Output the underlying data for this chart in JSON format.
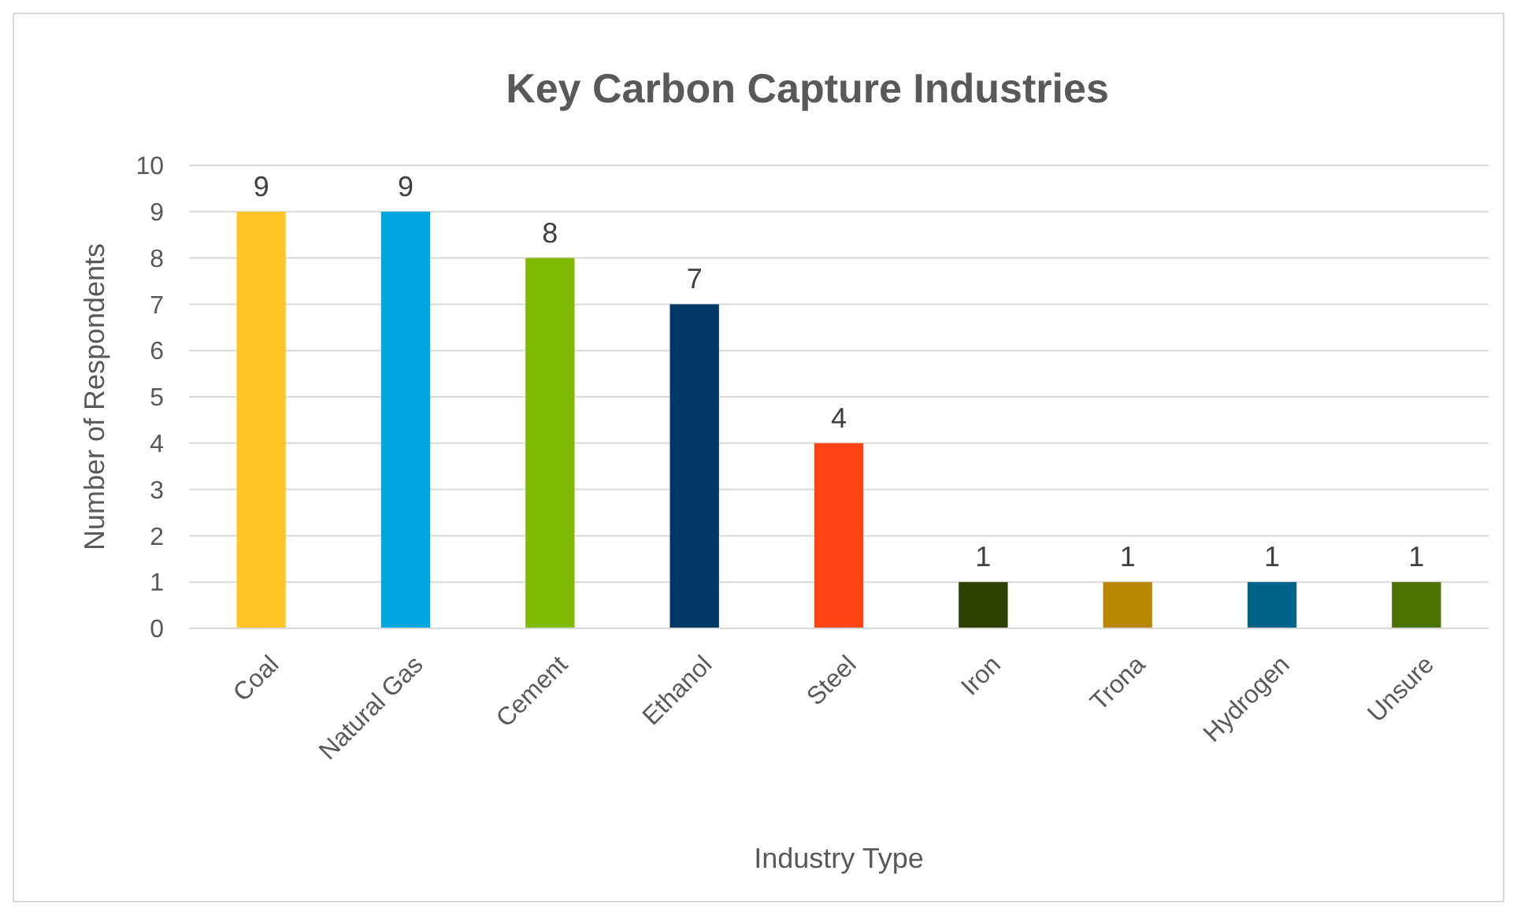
{
  "chart_data": {
    "type": "bar",
    "title": "Key Carbon Capture Industries",
    "xlabel": "Industry Type",
    "ylabel": "Number of Respondents",
    "categories": [
      "Coal",
      "Natural Gas",
      "Cement",
      "Ethanol",
      "Steel",
      "Iron",
      "Trona",
      "Hydrogen",
      "Unsure"
    ],
    "values": [
      9,
      9,
      8,
      7,
      4,
      1,
      1,
      1,
      1
    ],
    "colors": [
      "#ffc526",
      "#00a6e0",
      "#7fbb00",
      "#003764",
      "#ff4516",
      "#2f4100",
      "#b88800",
      "#006489",
      "#4d7300"
    ],
    "ylim": [
      0,
      10
    ],
    "yticks": [
      0,
      1,
      2,
      3,
      4,
      5,
      6,
      7,
      8,
      9,
      10
    ],
    "grid": "y",
    "data_labels": true
  }
}
